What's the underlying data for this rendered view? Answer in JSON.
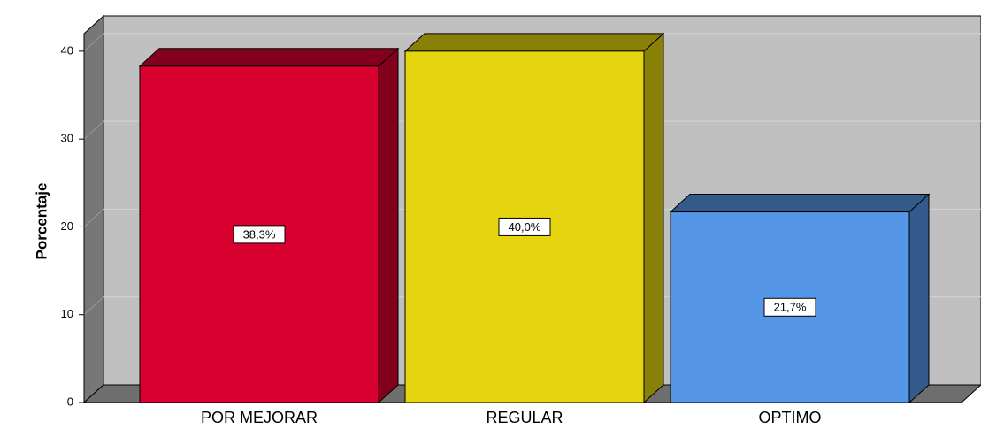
{
  "chart_data": {
    "type": "bar3d",
    "ylabel": "Porcentaje",
    "categories": [
      "POR MEJORAR",
      "REGULAR",
      "OPTIMO"
    ],
    "values": [
      38.3,
      40.0,
      21.7
    ],
    "value_labels": [
      "38,3%",
      "40,0%",
      "21,7%"
    ],
    "colors": [
      "#d8002f",
      "#e4d50e",
      "#5596e6"
    ],
    "ylim": [
      0,
      42
    ],
    "yticks": [
      0,
      10,
      20,
      30,
      40
    ],
    "grid": true
  }
}
